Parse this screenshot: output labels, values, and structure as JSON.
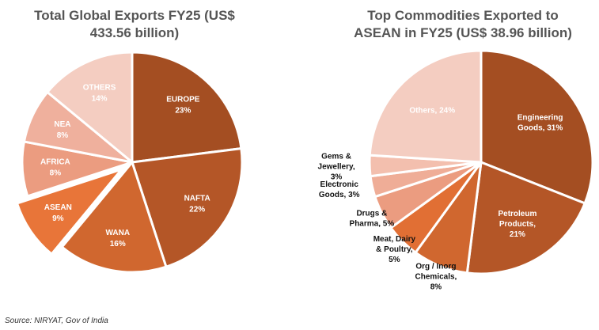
{
  "source": "Source: NIRYAT, Gov of India",
  "chart_data": [
    {
      "type": "pie",
      "title_line1": "Total Global Exports FY25 (US$",
      "title_line2": "433.56 billion)",
      "slices": [
        {
          "label": "EUROPE",
          "pct_label": "23%",
          "value": 23,
          "color": "#a44e22",
          "text_color": "#ffffff",
          "exploded": false
        },
        {
          "label": "NAFTA",
          "pct_label": "22%",
          "value": 22,
          "color": "#b45627",
          "text_color": "#ffffff",
          "exploded": false
        },
        {
          "label": "WANA",
          "pct_label": "16%",
          "value": 16,
          "color": "#d0672f",
          "text_color": "#ffffff",
          "exploded": false
        },
        {
          "label": "ASEAN",
          "pct_label": "9%",
          "value": 9,
          "color": "#e87539",
          "text_color": "#ffffff",
          "exploded": true
        },
        {
          "label": "AFRICA",
          "pct_label": "8%",
          "value": 8,
          "color": "#eb9c80",
          "text_color": "#ffffff",
          "exploded": false
        },
        {
          "label": "NEA",
          "pct_label": "8%",
          "value": 8,
          "color": "#efb09d",
          "text_color": "#ffffff",
          "exploded": false
        },
        {
          "label": "OTHERS",
          "pct_label": "14%",
          "value": 14,
          "color": "#f4cdc1",
          "text_color": "#ffffff",
          "exploded": false
        }
      ]
    },
    {
      "type": "pie",
      "title_line1": "Top Commodities Exported to",
      "title_line2": "ASEAN in FY25 (US$ 38.96 billion)",
      "slices": [
        {
          "lines": [
            "Engineering",
            "Goods, 31%"
          ],
          "value": 31,
          "color": "#a44e22",
          "inside": true
        },
        {
          "lines": [
            "Petroleum",
            "Products,",
            "21%"
          ],
          "value": 21,
          "color": "#b45627",
          "inside": true
        },
        {
          "lines": [
            "Org / Inorg",
            "Chemicals,",
            "8%"
          ],
          "value": 8,
          "color": "#d0672f",
          "inside": false
        },
        {
          "lines": [
            "Meat, Dairy",
            "& Poultry,",
            "5%"
          ],
          "value": 5,
          "color": "#e16f34",
          "inside": false
        },
        {
          "lines": [
            "Drugs &",
            "Pharma, 5%"
          ],
          "value": 5,
          "color": "#eb9c80",
          "inside": false
        },
        {
          "lines": [
            "Electronic",
            "Goods, 3%"
          ],
          "value": 3,
          "color": "#efad97",
          "inside": false
        },
        {
          "lines": [
            "Gems &",
            "Jewellery,",
            "3%"
          ],
          "value": 3,
          "color": "#f3bfae",
          "inside": false
        },
        {
          "lines": [
            "Others, 24%"
          ],
          "value": 24,
          "color": "#f4cdc1",
          "inside": true
        }
      ]
    }
  ]
}
